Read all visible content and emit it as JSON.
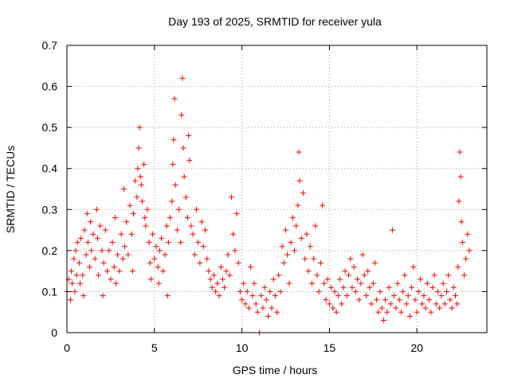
{
  "chart_data": {
    "type": "scatter",
    "title": "Day 193 of 2025, SRMTID for receiver yula",
    "xlabel": "GPS time / hours",
    "ylabel": "SRMTID / TECUs",
    "xlim": [
      0,
      24
    ],
    "ylim": [
      0,
      0.7
    ],
    "x_ticks": [
      0,
      5,
      10,
      15,
      20
    ],
    "y_ticks": [
      0,
      0.1,
      0.2,
      0.3,
      0.4,
      0.5,
      0.6,
      0.7
    ],
    "x_tick_labels": [
      "0",
      "5",
      "10",
      "15",
      "20"
    ],
    "y_tick_labels": [
      "0",
      "0.1",
      "0.2",
      "0.3",
      "0.4",
      "0.5",
      "0.6",
      "0.7"
    ],
    "grid": true,
    "marker": "plus",
    "series_color": "#ff0000",
    "series": [
      {
        "name": "SRMTID",
        "points": [
          [
            0.0,
            0.1
          ],
          [
            0.1,
            0.13
          ],
          [
            0.2,
            0.08
          ],
          [
            0.25,
            0.15
          ],
          [
            0.3,
            0.12
          ],
          [
            0.4,
            0.18
          ],
          [
            0.45,
            0.1
          ],
          [
            0.5,
            0.2
          ],
          [
            0.55,
            0.14
          ],
          [
            0.6,
            0.22
          ],
          [
            0.7,
            0.17
          ],
          [
            0.75,
            0.12
          ],
          [
            0.8,
            0.23
          ],
          [
            0.9,
            0.14
          ],
          [
            0.95,
            0.09
          ],
          [
            1.0,
            0.25
          ],
          [
            1.1,
            0.19
          ],
          [
            1.15,
            0.29
          ],
          [
            1.2,
            0.22
          ],
          [
            1.3,
            0.16
          ],
          [
            1.35,
            0.27
          ],
          [
            1.4,
            0.2
          ],
          [
            1.5,
            0.24
          ],
          [
            1.6,
            0.18
          ],
          [
            1.7,
            0.3
          ],
          [
            1.75,
            0.23
          ],
          [
            1.8,
            0.14
          ],
          [
            1.9,
            0.26
          ],
          [
            2.0,
            0.2
          ],
          [
            2.05,
            0.09
          ],
          [
            2.1,
            0.17
          ],
          [
            2.2,
            0.25
          ],
          [
            2.3,
            0.15
          ],
          [
            2.4,
            0.2
          ],
          [
            2.5,
            0.13
          ],
          [
            2.6,
            0.22
          ],
          [
            2.7,
            0.16
          ],
          [
            2.75,
            0.28
          ],
          [
            2.8,
            0.12
          ],
          [
            2.9,
            0.19
          ],
          [
            3.0,
            0.15
          ],
          [
            3.1,
            0.24
          ],
          [
            3.2,
            0.18
          ],
          [
            3.25,
            0.35
          ],
          [
            3.3,
            0.21
          ],
          [
            3.4,
            0.27
          ],
          [
            3.5,
            0.19
          ],
          [
            3.6,
            0.31
          ],
          [
            3.7,
            0.24
          ],
          [
            3.75,
            0.15
          ],
          [
            3.8,
            0.29
          ],
          [
            3.9,
            0.37
          ],
          [
            4.0,
            0.33
          ],
          [
            4.05,
            0.4
          ],
          [
            4.1,
            0.45
          ],
          [
            4.15,
            0.5
          ],
          [
            4.2,
            0.38
          ],
          [
            4.25,
            0.36
          ],
          [
            4.3,
            0.32
          ],
          [
            4.4,
            0.41
          ],
          [
            4.45,
            0.28
          ],
          [
            4.5,
            0.26
          ],
          [
            4.6,
            0.3
          ],
          [
            4.7,
            0.22
          ],
          [
            4.75,
            0.17
          ],
          [
            4.8,
            0.13
          ],
          [
            4.9,
            0.24
          ],
          [
            5.0,
            0.18
          ],
          [
            5.1,
            0.21
          ],
          [
            5.2,
            0.16
          ],
          [
            5.25,
            0.12
          ],
          [
            5.3,
            0.2
          ],
          [
            5.4,
            0.23
          ],
          [
            5.5,
            0.15
          ],
          [
            5.6,
            0.19
          ],
          [
            5.7,
            0.26
          ],
          [
            5.75,
            0.09
          ],
          [
            5.8,
            0.22
          ],
          [
            5.9,
            0.28
          ],
          [
            6.0,
            0.32
          ],
          [
            6.05,
            0.41
          ],
          [
            6.1,
            0.47
          ],
          [
            6.15,
            0.57
          ],
          [
            6.2,
            0.36
          ],
          [
            6.3,
            0.25
          ],
          [
            6.4,
            0.3
          ],
          [
            6.5,
            0.22
          ],
          [
            6.55,
            0.53
          ],
          [
            6.6,
            0.62
          ],
          [
            6.65,
            0.45
          ],
          [
            6.7,
            0.38
          ],
          [
            6.8,
            0.33
          ],
          [
            6.9,
            0.28
          ],
          [
            6.95,
            0.48
          ],
          [
            7.0,
            0.42
          ],
          [
            7.1,
            0.26
          ],
          [
            7.2,
            0.24
          ],
          [
            7.3,
            0.19
          ],
          [
            7.4,
            0.3
          ],
          [
            7.5,
            0.22
          ],
          [
            7.6,
            0.17
          ],
          [
            7.7,
            0.27
          ],
          [
            7.8,
            0.21
          ],
          [
            7.9,
            0.25
          ],
          [
            8.0,
            0.18
          ],
          [
            8.1,
            0.15
          ],
          [
            8.2,
            0.13
          ],
          [
            8.3,
            0.11
          ],
          [
            8.4,
            0.14
          ],
          [
            8.5,
            0.1
          ],
          [
            8.6,
            0.12
          ],
          [
            8.7,
            0.09
          ],
          [
            8.8,
            0.16
          ],
          [
            8.9,
            0.13
          ],
          [
            9.0,
            0.11
          ],
          [
            9.1,
            0.15
          ],
          [
            9.2,
            0.19
          ],
          [
            9.3,
            0.14
          ],
          [
            9.4,
            0.33
          ],
          [
            9.5,
            0.24
          ],
          [
            9.6,
            0.2
          ],
          [
            9.7,
            0.29
          ],
          [
            9.8,
            0.17
          ],
          [
            9.9,
            0.1
          ],
          [
            10.0,
            0.08
          ],
          [
            10.1,
            0.12
          ],
          [
            10.2,
            0.07
          ],
          [
            10.3,
            0.1
          ],
          [
            10.4,
            0.06
          ],
          [
            10.5,
            0.16
          ],
          [
            10.6,
            0.09
          ],
          [
            10.7,
            0.12
          ],
          [
            10.8,
            0.07
          ],
          [
            10.9,
            0.05
          ],
          [
            11.0,
            0.0
          ],
          [
            11.1,
            0.09
          ],
          [
            11.2,
            0.06
          ],
          [
            11.3,
            0.11
          ],
          [
            11.4,
            0.08
          ],
          [
            11.5,
            0.04
          ],
          [
            11.6,
            0.1
          ],
          [
            11.7,
            0.06
          ],
          [
            11.8,
            0.13
          ],
          [
            11.9,
            0.09
          ],
          [
            12.0,
            0.05
          ],
          [
            12.1,
            0.14
          ],
          [
            12.2,
            0.1
          ],
          [
            12.3,
            0.21
          ],
          [
            12.4,
            0.17
          ],
          [
            12.5,
            0.25
          ],
          [
            12.6,
            0.19
          ],
          [
            12.7,
            0.12
          ],
          [
            12.8,
            0.22
          ],
          [
            12.9,
            0.28
          ],
          [
            13.0,
            0.2
          ],
          [
            13.1,
            0.26
          ],
          [
            13.2,
            0.31
          ],
          [
            13.25,
            0.44
          ],
          [
            13.3,
            0.37
          ],
          [
            13.4,
            0.23
          ],
          [
            13.5,
            0.34
          ],
          [
            13.6,
            0.18
          ],
          [
            13.7,
            0.24
          ],
          [
            13.8,
            0.15
          ],
          [
            13.9,
            0.21
          ],
          [
            14.0,
            0.12
          ],
          [
            14.1,
            0.18
          ],
          [
            14.2,
            0.26
          ],
          [
            14.3,
            0.14
          ],
          [
            14.4,
            0.1
          ],
          [
            14.5,
            0.17
          ],
          [
            14.6,
            0.31
          ],
          [
            14.7,
            0.12
          ],
          [
            14.8,
            0.08
          ],
          [
            14.9,
            0.13
          ],
          [
            15.0,
            0.07
          ],
          [
            15.1,
            0.11
          ],
          [
            15.2,
            0.06
          ],
          [
            15.3,
            0.1
          ],
          [
            15.4,
            0.05
          ],
          [
            15.5,
            0.09
          ],
          [
            15.6,
            0.13
          ],
          [
            15.7,
            0.07
          ],
          [
            15.8,
            0.11
          ],
          [
            15.9,
            0.15
          ],
          [
            16.0,
            0.09
          ],
          [
            16.1,
            0.14
          ],
          [
            16.2,
            0.18
          ],
          [
            16.3,
            0.11
          ],
          [
            16.4,
            0.16
          ],
          [
            16.5,
            0.1
          ],
          [
            16.6,
            0.13
          ],
          [
            16.7,
            0.08
          ],
          [
            16.8,
            0.12
          ],
          [
            16.9,
            0.19
          ],
          [
            17.0,
            0.14
          ],
          [
            17.1,
            0.09
          ],
          [
            17.2,
            0.15
          ],
          [
            17.3,
            0.11
          ],
          [
            17.4,
            0.07
          ],
          [
            17.5,
            0.12
          ],
          [
            17.6,
            0.17
          ],
          [
            17.7,
            0.08
          ],
          [
            17.8,
            0.05
          ],
          [
            17.9,
            0.1
          ],
          [
            18.0,
            0.06
          ],
          [
            18.1,
            0.03
          ],
          [
            18.2,
            0.08
          ],
          [
            18.3,
            0.05
          ],
          [
            18.4,
            0.11
          ],
          [
            18.5,
            0.07
          ],
          [
            18.6,
            0.25
          ],
          [
            18.7,
            0.09
          ],
          [
            18.8,
            0.06
          ],
          [
            18.9,
            0.12
          ],
          [
            19.0,
            0.08
          ],
          [
            19.1,
            0.05
          ],
          [
            19.2,
            0.1
          ],
          [
            19.3,
            0.14
          ],
          [
            19.4,
            0.07
          ],
          [
            19.5,
            0.09
          ],
          [
            19.6,
            0.04
          ],
          [
            19.7,
            0.11
          ],
          [
            19.8,
            0.16
          ],
          [
            19.9,
            0.08
          ],
          [
            20.0,
            0.05
          ],
          [
            20.1,
            0.1
          ],
          [
            20.2,
            0.13
          ],
          [
            20.3,
            0.07
          ],
          [
            20.4,
            0.09
          ],
          [
            20.5,
            0.06
          ],
          [
            20.6,
            0.12
          ],
          [
            20.7,
            0.08
          ],
          [
            20.8,
            0.05
          ],
          [
            20.9,
            0.11
          ],
          [
            21.0,
            0.14
          ],
          [
            21.1,
            0.07
          ],
          [
            21.2,
            0.1
          ],
          [
            21.3,
            0.06
          ],
          [
            21.4,
            0.09
          ],
          [
            21.5,
            0.12
          ],
          [
            21.6,
            0.07
          ],
          [
            21.7,
            0.1
          ],
          [
            21.8,
            0.14
          ],
          [
            21.9,
            0.08
          ],
          [
            22.0,
            0.06
          ],
          [
            22.1,
            0.11
          ],
          [
            22.2,
            0.09
          ],
          [
            22.3,
            0.07
          ],
          [
            22.35,
            0.16
          ],
          [
            22.4,
            0.32
          ],
          [
            22.45,
            0.44
          ],
          [
            22.5,
            0.38
          ],
          [
            22.55,
            0.27
          ],
          [
            22.6,
            0.22
          ],
          [
            22.7,
            0.14
          ],
          [
            22.8,
            0.18
          ],
          [
            22.9,
            0.24
          ],
          [
            23.0,
            0.2
          ]
        ]
      }
    ]
  }
}
